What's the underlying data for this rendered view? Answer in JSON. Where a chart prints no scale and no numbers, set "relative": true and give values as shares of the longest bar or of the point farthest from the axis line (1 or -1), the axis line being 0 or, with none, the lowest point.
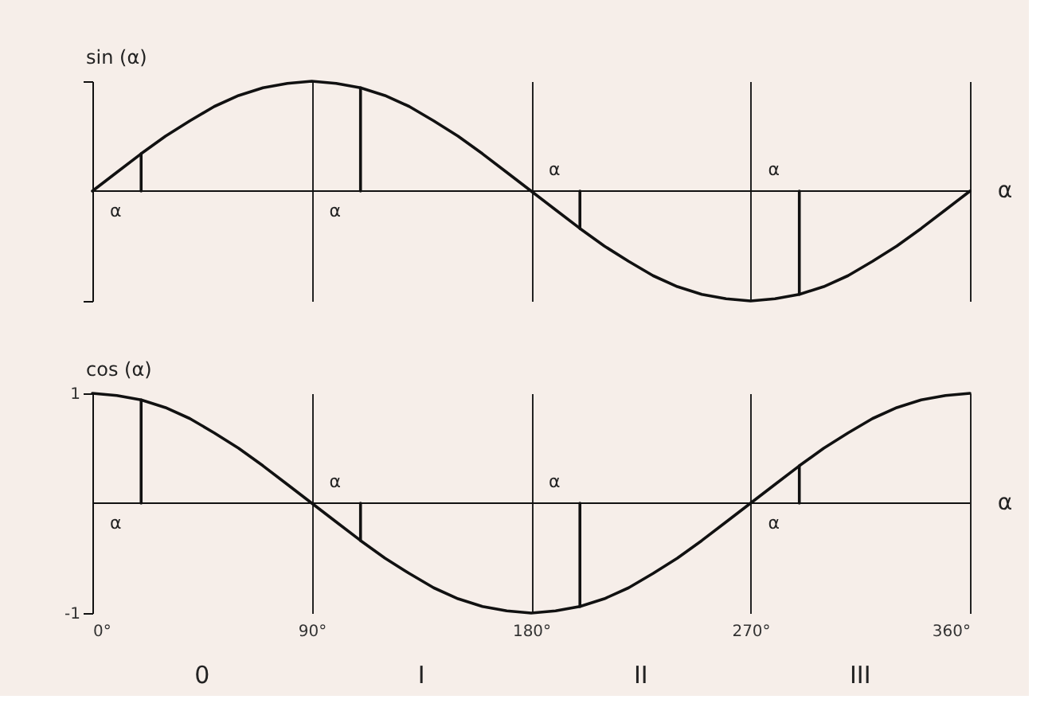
{
  "chart_data": [
    {
      "type": "line",
      "ylabel": "sin (α)",
      "xlabel": "α",
      "relative": true,
      "xlim": [
        0,
        360
      ],
      "xticks": [
        {
          "value": 0,
          "label": null
        },
        {
          "value": 90,
          "label": null
        },
        {
          "value": 180,
          "label": null
        },
        {
          "value": 270,
          "label": null
        },
        {
          "value": 360,
          "label": null
        }
      ],
      "tick_labels": false,
      "grid": "x",
      "x": [
        0,
        10,
        20,
        30,
        40,
        50,
        60,
        70,
        80,
        90,
        100,
        110,
        120,
        130,
        140,
        150,
        160,
        170,
        180,
        190,
        200,
        210,
        220,
        230,
        240,
        250,
        260,
        270,
        280,
        290,
        300,
        310,
        320,
        330,
        340,
        350,
        360
      ],
      "series": [
        {
          "color": "#111111",
          "values": [
            0,
            0.17,
            0.34,
            0.5,
            0.64,
            0.77,
            0.87,
            0.94,
            0.98,
            1,
            0.98,
            0.94,
            0.87,
            0.77,
            0.64,
            0.5,
            0.34,
            0.17,
            0,
            -0.17,
            -0.34,
            -0.5,
            -0.64,
            -0.77,
            -0.87,
            -0.94,
            -0.98,
            -1,
            -0.98,
            -0.94,
            -0.87,
            -0.77,
            -0.64,
            -0.5,
            -0.34,
            -0.17,
            0
          ]
        },
        {
          "type": "line",
          "color": "#111111",
          "x": [
            20,
            20
          ],
          "values": [
            0,
            0.34
          ]
        },
        {
          "type": "line",
          "color": "#111111",
          "x": [
            110,
            110
          ],
          "values": [
            0,
            0.94
          ]
        },
        {
          "type": "line",
          "color": "#111111",
          "x": [
            200,
            200
          ],
          "values": [
            0,
            -0.34
          ]
        },
        {
          "type": "line",
          "color": "#111111",
          "x": [
            290,
            290
          ],
          "values": [
            0,
            -0.94
          ]
        }
      ],
      "ref_lines": [
        {
          "axis": "y",
          "value": 0
        }
      ],
      "annotations": [
        "α",
        "α",
        "α",
        "α"
      ]
    },
    {
      "type": "line",
      "ylabel": "cos (α)",
      "xlabel": "α",
      "xlim": [
        0,
        360
      ],
      "ylim": [
        -1,
        1
      ],
      "xticks": [
        {
          "value": 0,
          "label": "0°"
        },
        {
          "value": 90,
          "label": "90°"
        },
        {
          "value": 180,
          "label": "180°"
        },
        {
          "value": 270,
          "label": "270°"
        },
        {
          "value": 360,
          "label": "360°"
        }
      ],
      "yticks": [
        1,
        -1
      ],
      "grid": "x",
      "x": [
        0,
        10,
        20,
        30,
        40,
        50,
        60,
        70,
        80,
        90,
        100,
        110,
        120,
        130,
        140,
        150,
        160,
        170,
        180,
        190,
        200,
        210,
        220,
        230,
        240,
        250,
        260,
        270,
        280,
        290,
        300,
        310,
        320,
        330,
        340,
        350,
        360
      ],
      "series": [
        {
          "color": "#111111",
          "values": [
            1,
            0.98,
            0.94,
            0.87,
            0.77,
            0.64,
            0.5,
            0.34,
            0.17,
            0,
            -0.17,
            -0.34,
            -0.5,
            -0.64,
            -0.77,
            -0.87,
            -0.94,
            -0.98,
            -1,
            -0.98,
            -0.94,
            -0.87,
            -0.77,
            -0.64,
            -0.5,
            -0.34,
            -0.17,
            0,
            0.17,
            0.34,
            0.5,
            0.64,
            0.77,
            0.87,
            0.94,
            0.98,
            1
          ]
        },
        {
          "type": "line",
          "color": "#111111",
          "x": [
            20,
            20
          ],
          "values": [
            0,
            0.94
          ]
        },
        {
          "type": "line",
          "color": "#111111",
          "x": [
            110,
            110
          ],
          "values": [
            0,
            -0.34
          ]
        },
        {
          "type": "line",
          "color": "#111111",
          "x": [
            200,
            200
          ],
          "values": [
            0,
            -0.94
          ]
        },
        {
          "type": "line",
          "color": "#111111",
          "x": [
            290,
            290
          ],
          "values": [
            0,
            0.34
          ]
        }
      ],
      "ref_lines": [
        {
          "axis": "y",
          "value": 0
        }
      ],
      "annotations": [
        "α",
        "α",
        "α",
        "α",
        "0",
        "I",
        "II",
        "III"
      ]
    }
  ]
}
